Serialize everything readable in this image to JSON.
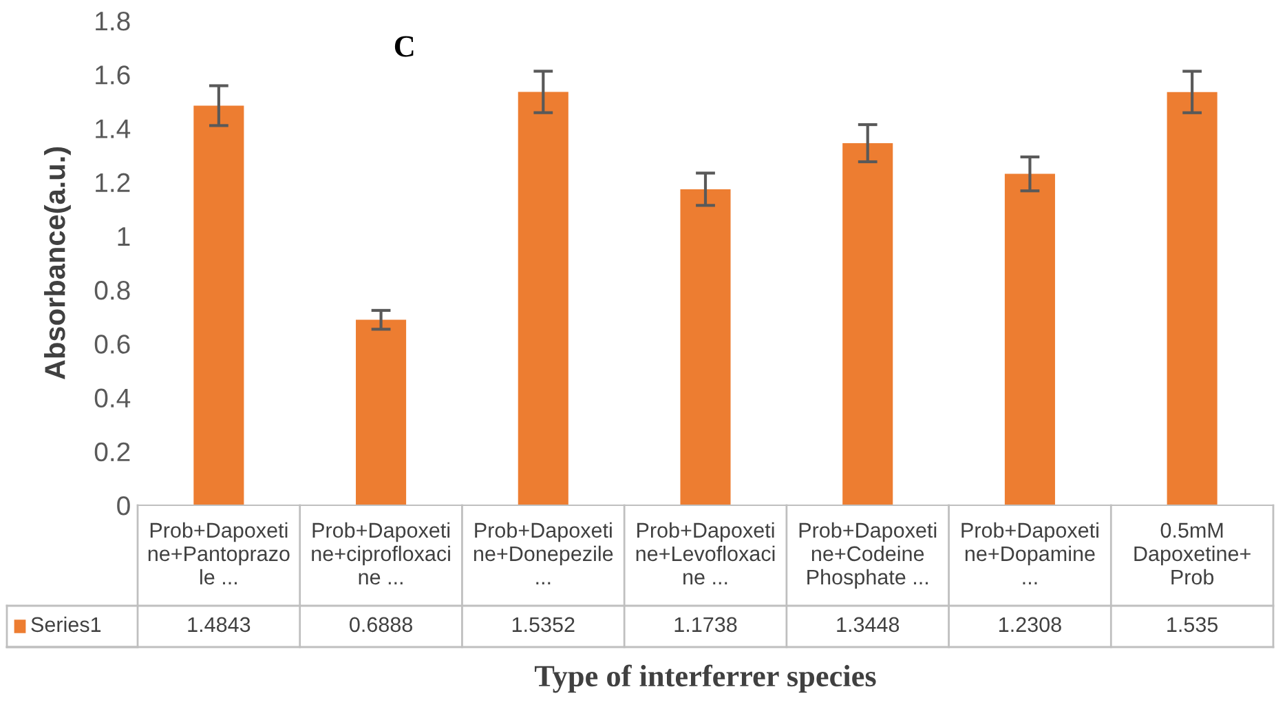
{
  "chart_data": {
    "type": "bar",
    "title": "C",
    "xlabel": "Type of interferrer species",
    "ylabel": "Absorbance(a.u.)",
    "categories": [
      "Prob+Dapoxetine+Pantoprazole ...",
      "Prob+Dapoxetine+ciprofloxacine ...",
      "Prob+Dapoxetine+Donepezile ...",
      "Prob+Dapoxetine+Levofloxacine ...",
      "Prob+Dapoxetine+Codeine Phosphate ...",
      "Prob+Dapoxetine+Dopamine ...",
      "0.5mM Dapoxetine+ Prob"
    ],
    "series": [
      {
        "name": "Series1",
        "color": "#ed7d31",
        "values": [
          1.4843,
          0.6888,
          1.5352,
          1.1738,
          1.3448,
          1.2308,
          1.535
        ],
        "errors": [
          0.074,
          0.035,
          0.077,
          0.06,
          0.069,
          0.063,
          0.077
        ]
      }
    ],
    "data_labels": true,
    "ylim": [
      0,
      1.8
    ],
    "yticks": [
      0,
      0.2,
      0.4,
      0.6,
      0.8,
      1,
      1.2,
      1.4,
      1.6,
      1.8
    ],
    "grid": false,
    "legend": "bottom"
  }
}
